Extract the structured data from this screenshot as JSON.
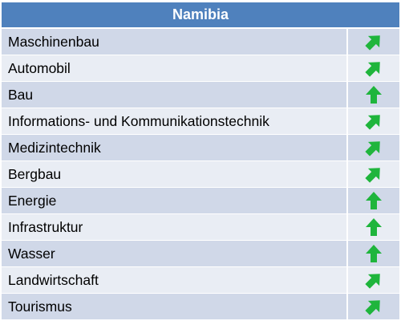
{
  "table": {
    "title": "Namibia",
    "arrow_color": "#1fb53c",
    "rows": [
      {
        "label": "Maschinenbau",
        "trend": "up-right"
      },
      {
        "label": "Automobil",
        "trend": "up-right"
      },
      {
        "label": "Bau",
        "trend": "up"
      },
      {
        "label": "Informations- und Kommunikationstechnik",
        "trend": "up-right"
      },
      {
        "label": "Medizintechnik",
        "trend": "up-right"
      },
      {
        "label": "Bergbau",
        "trend": "up-right"
      },
      {
        "label": "Energie",
        "trend": "up"
      },
      {
        "label": "Infrastruktur",
        "trend": "up"
      },
      {
        "label": "Wasser",
        "trend": "up"
      },
      {
        "label": "Landwirtschaft",
        "trend": "up-right"
      },
      {
        "label": "Tourismus",
        "trend": "up-right"
      }
    ]
  }
}
